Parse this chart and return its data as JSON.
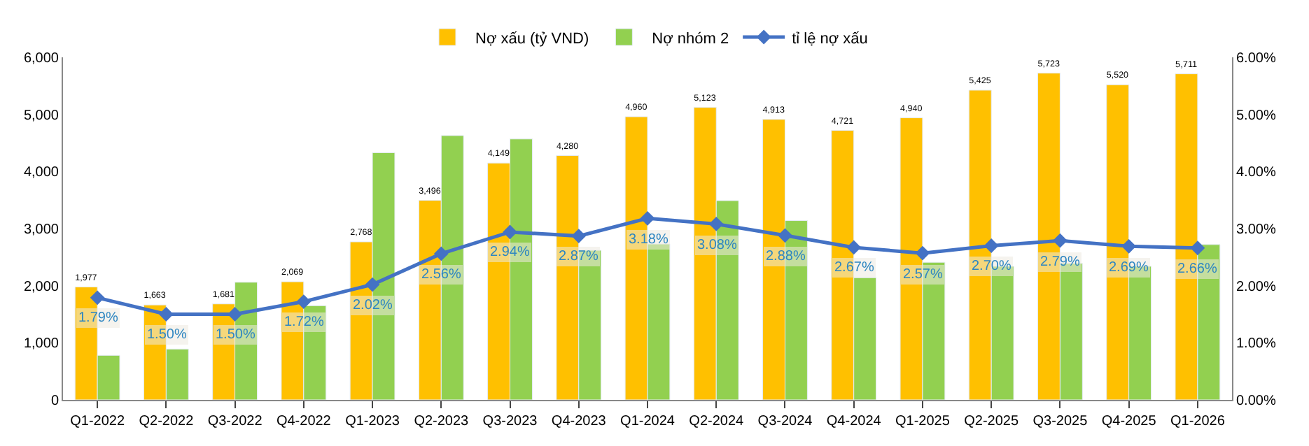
{
  "chart_data": {
    "type": "bar",
    "categories": [
      "Q1-2022",
      "Q2-2022",
      "Q3-2022",
      "Q4-2022",
      "Q1-2023",
      "Q2-2023",
      "Q3-2023",
      "Q4-2023",
      "Q1-2024",
      "Q2-2024",
      "Q3-2024",
      "Q4-2024",
      "Q1-2025",
      "Q2-2025",
      "Q3-2025",
      "Q4-2025",
      "Q1-2026"
    ],
    "series": [
      {
        "name": "Nợ xấu (tỷ VND)",
        "color": "#ffc000",
        "values": [
          1977,
          1663,
          1681,
          2069,
          2768,
          3496,
          4149,
          4280,
          4960,
          5123,
          4913,
          4721,
          4940,
          5425,
          5723,
          5520,
          5711
        ],
        "value_labels": [
          "1,977",
          "1,663",
          "1,681",
          "2,069",
          "2,768",
          "3,496",
          "4,149",
          "4,280",
          "4,960",
          "5,123",
          "4,913",
          "4,721",
          "4,940",
          "5,425",
          "5,723",
          "5,520",
          "5,711"
        ]
      },
      {
        "name": "Nợ nhóm 2",
        "color": "#92d050",
        "values": [
          780,
          890,
          2060,
          1650,
          4330,
          4630,
          4570,
          2620,
          2730,
          3490,
          3140,
          2140,
          2410,
          2340,
          2390,
          2340,
          2720
        ]
      },
      {
        "name": "tỉ lệ nợ xấu",
        "type": "line",
        "axis": "y2",
        "color": "#4472c4",
        "marker": "diamond",
        "values": [
          1.79,
          1.5,
          1.5,
          1.72,
          2.02,
          2.56,
          2.94,
          2.87,
          3.18,
          3.08,
          2.88,
          2.67,
          2.57,
          2.7,
          2.79,
          2.69,
          2.66
        ],
        "value_labels": [
          "1.79%",
          "1.50%",
          "1.50%",
          "1.72%",
          "2.02%",
          "2.56%",
          "2.94%",
          "2.87%",
          "3.18%",
          "3.08%",
          "2.88%",
          "2.67%",
          "2.57%",
          "2.70%",
          "2.79%",
          "2.69%",
          "2.66%"
        ]
      }
    ],
    "ylim": [
      0,
      6000
    ],
    "yticks": [
      {
        "value": 0,
        "label": "0"
      },
      {
        "value": 1000,
        "label": "1,000"
      },
      {
        "value": 2000,
        "label": "2,000"
      },
      {
        "value": 3000,
        "label": "3,000"
      },
      {
        "value": 4000,
        "label": "4,000"
      },
      {
        "value": 5000,
        "label": "5,000"
      },
      {
        "value": 6000,
        "label": "6,000"
      }
    ],
    "y2lim": [
      0,
      6
    ],
    "y2ticks": [
      {
        "value": 0,
        "label": "0.00%"
      },
      {
        "value": 1,
        "label": "1.00%"
      },
      {
        "value": 2,
        "label": "2.00%"
      },
      {
        "value": 3,
        "label": "3.00%"
      },
      {
        "value": 4,
        "label": "4.00%"
      },
      {
        "value": 5,
        "label": "5.00%"
      },
      {
        "value": 6,
        "label": "6.00%"
      }
    ],
    "legend": "top"
  }
}
